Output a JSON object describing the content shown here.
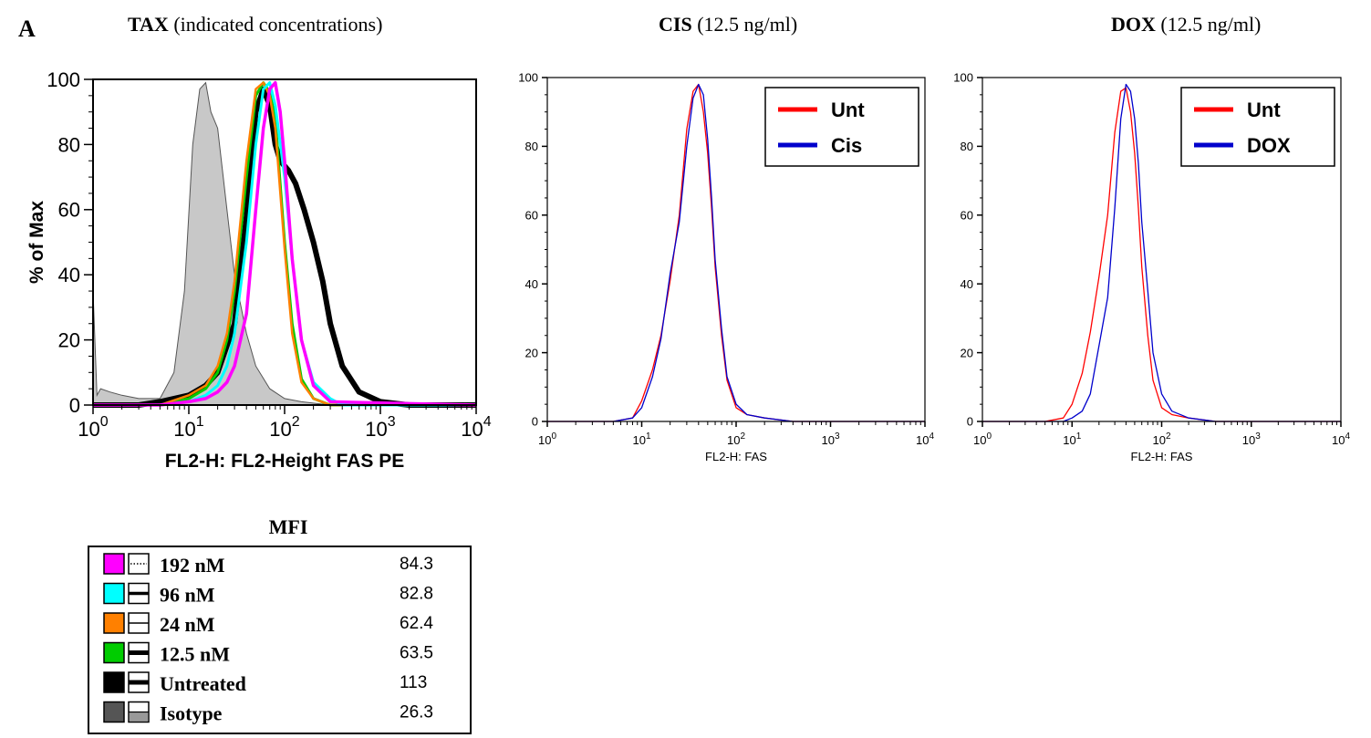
{
  "panel_label": "A",
  "panels": [
    {
      "title_bold": "TAX",
      "title_rest": " (indicated concentrations)"
    },
    {
      "title_bold": "CIS",
      "title_rest": " (12.5 ng/ml)"
    },
    {
      "title_bold": "DOX",
      "title_rest": " (12.5 ng/ml)"
    }
  ],
  "mfi_table": {
    "heading": "MFI",
    "rows": [
      {
        "label": "192 nM",
        "value": "84.3",
        "color": "#ff00ff",
        "line_style": "dotted"
      },
      {
        "label": "96 nM",
        "value": "82.8",
        "color": "#00ffff",
        "line_style": "medium"
      },
      {
        "label": "24 nM",
        "value": "62.4",
        "color": "#ff8000",
        "line_style": "thin"
      },
      {
        "label": "12.5 nM",
        "value": "63.5",
        "color": "#00cc00",
        "line_style": "thick"
      },
      {
        "label": "Untreated",
        "value": "113",
        "color": "#000000",
        "line_style": "thick"
      },
      {
        "label": "Isotype",
        "value": "26.3",
        "color": "#555555",
        "line_style": "filled"
      }
    ]
  },
  "chart_data": [
    {
      "type": "line",
      "title": "TAX (indicated concentrations)",
      "xlabel": "FL2-H: FL2-Height FAS PE",
      "ylabel": "% of Max",
      "x_scale": "log",
      "xlim": [
        1,
        10000
      ],
      "ylim": [
        0,
        100
      ],
      "x_ticks": [
        "10^0",
        "10^1",
        "10^2",
        "10^3",
        "10^4"
      ],
      "y_ticks": [
        "0",
        "20",
        "40",
        "60",
        "80",
        "100"
      ],
      "series": [
        {
          "name": "Isotype",
          "color": "#c8c8c8",
          "fill": true,
          "x": [
            1,
            1.1,
            1.2,
            1.5,
            2,
            3,
            5,
            7,
            9,
            11,
            13,
            15,
            17,
            20,
            25,
            30,
            40,
            50,
            70,
            100,
            150,
            300,
            1000,
            10000
          ],
          "y": [
            35,
            3,
            5,
            4,
            3,
            2,
            2,
            10,
            35,
            80,
            97,
            99,
            90,
            85,
            60,
            40,
            22,
            12,
            5,
            2,
            1,
            0,
            0,
            0
          ]
        },
        {
          "name": "Untreated",
          "color": "#000000",
          "x": [
            1,
            3,
            5,
            10,
            15,
            20,
            30,
            40,
            50,
            60,
            70,
            80,
            90,
            110,
            130,
            160,
            200,
            250,
            300,
            400,
            600,
            1000,
            2000,
            10000
          ],
          "y": [
            0,
            0,
            1,
            3,
            6,
            10,
            25,
            58,
            90,
            97,
            92,
            80,
            75,
            72,
            68,
            60,
            50,
            38,
            25,
            12,
            4,
            1,
            0,
            0
          ]
        },
        {
          "name": "12.5 nM",
          "color": "#00cc00",
          "x": [
            1,
            5,
            10,
            15,
            20,
            25,
            30,
            40,
            50,
            60,
            70,
            80,
            100,
            120,
            150,
            200,
            300,
            10000
          ],
          "y": [
            0,
            0,
            2,
            5,
            10,
            20,
            35,
            70,
            95,
            99,
            96,
            88,
            50,
            25,
            8,
            2,
            0,
            0
          ]
        },
        {
          "name": "24 nM",
          "color": "#ff8000",
          "x": [
            1,
            5,
            10,
            15,
            20,
            25,
            30,
            40,
            50,
            60,
            70,
            80,
            100,
            120,
            150,
            200,
            300,
            10000
          ],
          "y": [
            0,
            0,
            3,
            6,
            12,
            22,
            38,
            75,
            97,
            99,
            95,
            85,
            48,
            22,
            7,
            2,
            0,
            0
          ]
        },
        {
          "name": "96 nM",
          "color": "#00ffff",
          "x": [
            1,
            5,
            10,
            15,
            20,
            25,
            30,
            40,
            50,
            60,
            70,
            80,
            100,
            120,
            150,
            200,
            300,
            400,
            10000
          ],
          "y": [
            0,
            0,
            1,
            3,
            6,
            12,
            22,
            50,
            80,
            97,
            99,
            92,
            70,
            45,
            20,
            7,
            2,
            0,
            0
          ]
        },
        {
          "name": "192 nM",
          "color": "#ff00ff",
          "x": [
            1,
            5,
            10,
            15,
            20,
            25,
            30,
            40,
            50,
            60,
            70,
            80,
            90,
            100,
            120,
            150,
            200,
            300,
            10000
          ],
          "y": [
            0,
            0,
            1,
            2,
            4,
            7,
            12,
            28,
            60,
            85,
            97,
            99,
            90,
            75,
            45,
            20,
            6,
            1,
            0
          ]
        }
      ]
    },
    {
      "type": "line",
      "title": "CIS (12.5 ng/ml)",
      "xlabel": "FL2-H: FAS",
      "ylabel": "",
      "x_scale": "log",
      "xlim": [
        1,
        10000
      ],
      "ylim": [
        0,
        100
      ],
      "x_ticks": [
        "10^0",
        "10^1",
        "10^2",
        "10^3",
        "10^4"
      ],
      "y_ticks": [
        "0",
        "20",
        "40",
        "60",
        "80",
        "100"
      ],
      "legend": "top-right",
      "series": [
        {
          "name": "Unt",
          "color": "#ff0000",
          "x": [
            1,
            5,
            8,
            10,
            13,
            16,
            20,
            25,
            30,
            35,
            40,
            45,
            50,
            55,
            60,
            70,
            80,
            100,
            130,
            200,
            400,
            10000
          ],
          "y": [
            0,
            0,
            1,
            6,
            15,
            25,
            41,
            60,
            85,
            96,
            98,
            90,
            78,
            62,
            45,
            25,
            12,
            4,
            2,
            1,
            0,
            0
          ]
        },
        {
          "name": "Cis",
          "color": "#0000cc",
          "x": [
            1,
            5,
            8,
            10,
            13,
            16,
            20,
            25,
            30,
            35,
            40,
            45,
            50,
            55,
            60,
            70,
            80,
            100,
            130,
            200,
            400,
            10000
          ],
          "y": [
            0,
            0,
            1,
            4,
            13,
            24,
            43,
            58,
            80,
            94,
            98,
            95,
            82,
            65,
            47,
            27,
            13,
            5,
            2,
            1,
            0,
            0
          ]
        }
      ]
    },
    {
      "type": "line",
      "title": "DOX (12.5 ng/ml)",
      "xlabel": "FL2-H: FAS",
      "ylabel": "",
      "x_scale": "log",
      "xlim": [
        1,
        10000
      ],
      "ylim": [
        0,
        100
      ],
      "x_ticks": [
        "10^0",
        "10^1",
        "10^2",
        "10^3",
        "10^4"
      ],
      "y_ticks": [
        "0",
        "20",
        "40",
        "60",
        "80",
        "100"
      ],
      "legend": "top-right",
      "series": [
        {
          "name": "Unt",
          "color": "#ff0000",
          "x": [
            1,
            5,
            8,
            10,
            13,
            16,
            20,
            25,
            30,
            35,
            40,
            45,
            50,
            55,
            60,
            70,
            80,
            100,
            130,
            200,
            400,
            10000
          ],
          "y": [
            0,
            0,
            1,
            5,
            14,
            26,
            42,
            60,
            84,
            96,
            97,
            90,
            78,
            62,
            45,
            25,
            12,
            4,
            2,
            1,
            0,
            0
          ]
        },
        {
          "name": "DOX",
          "color": "#0000cc",
          "x": [
            1,
            5,
            8,
            10,
            13,
            16,
            20,
            25,
            30,
            35,
            40,
            45,
            50,
            55,
            60,
            70,
            80,
            100,
            130,
            200,
            400,
            10000
          ],
          "y": [
            0,
            0,
            0,
            1,
            3,
            8,
            22,
            36,
            62,
            88,
            98,
            96,
            88,
            75,
            58,
            38,
            20,
            8,
            3,
            1,
            0,
            0
          ]
        }
      ]
    }
  ]
}
